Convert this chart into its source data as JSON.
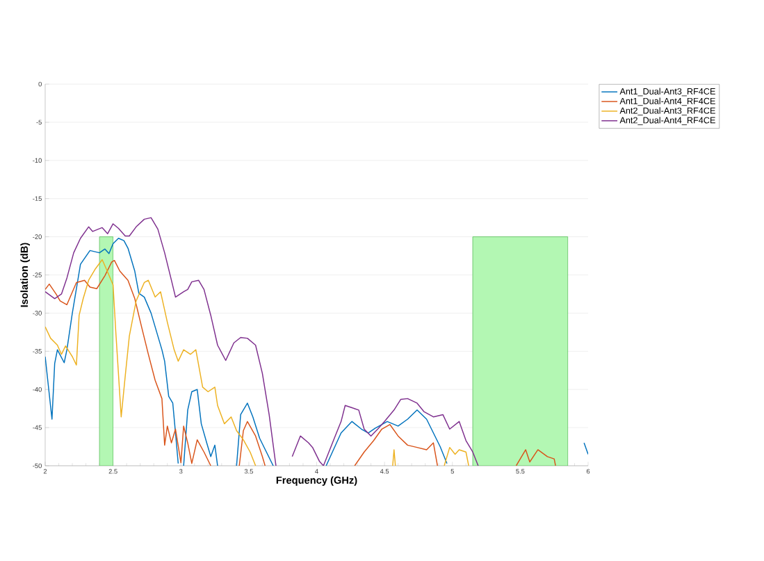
{
  "chart_data": {
    "type": "line",
    "xlabel": "Frequency (GHz)",
    "ylabel": "Isolation (dB)",
    "xlim": [
      2,
      6
    ],
    "ylim": [
      -50,
      0
    ],
    "xticks": [
      2,
      2.5,
      3,
      3.5,
      4,
      4.5,
      5,
      5.5,
      6
    ],
    "yticks": [
      -50,
      -45,
      -40,
      -35,
      -30,
      -25,
      -20,
      -15,
      -10,
      -5,
      0
    ],
    "grid": "y",
    "legend": "top right",
    "series": [
      {
        "type": "area",
        "color": "#b3f7b3",
        "x": [
          2.4,
          2.4,
          2.5,
          2.5
        ],
        "values": [
          -50,
          -20,
          -20,
          -50
        ]
      },
      {
        "type": "area",
        "color": "#b3f7b3",
        "x": [
          5.15,
          5.15,
          5.85,
          5.85
        ],
        "values": [
          -50,
          -20,
          -20,
          -50
        ]
      },
      {
        "name": "Ant1_Dual-Ant3_RF4CE",
        "color": "#0072bd",
        "x": [
          2.0,
          2.05,
          2.07,
          2.09,
          2.14,
          2.16,
          2.2,
          2.26,
          2.33,
          2.4,
          2.44,
          2.47,
          2.5,
          2.54,
          2.58,
          2.61,
          2.66,
          2.69,
          2.73,
          2.78,
          2.83,
          2.86,
          2.88,
          2.91,
          2.94,
          2.96,
          2.98,
          3.0,
          3.02,
          3.05,
          3.08,
          3.12,
          3.15,
          3.19,
          3.22,
          3.25,
          3.27,
          3.35,
          3.41,
          3.44,
          3.49,
          3.53,
          3.58,
          3.63,
          3.68,
          3.9,
          4.07,
          4.18,
          4.26,
          4.33,
          4.38,
          4.43,
          4.52,
          4.6,
          4.67,
          4.74,
          4.81,
          4.86,
          4.91,
          4.96,
          5.5,
          5.97,
          6.0
        ],
        "values": [
          -35.7,
          -43.9,
          -36.6,
          -34.8,
          -36.5,
          -34.8,
          -30,
          -23.6,
          -21.8,
          -22.1,
          -21.6,
          -22.2,
          -20.9,
          -20.2,
          -20.5,
          -21.5,
          -24.5,
          -27.4,
          -27.9,
          -30,
          -33,
          -34.8,
          -36.3,
          -40.9,
          -41.8,
          -45.7,
          -49.7,
          null,
          -50,
          -42.7,
          -40.3,
          -40,
          -44.5,
          -47,
          -48.8,
          -47.3,
          -50,
          null,
          -50,
          -43.3,
          -41.8,
          -43.6,
          -46.4,
          -48.2,
          -50,
          null,
          -50,
          -45.7,
          -44.2,
          -45.2,
          -45.7,
          -45.1,
          -44.2,
          -44.8,
          -43.9,
          -42.7,
          -43.9,
          -45.7,
          -47.5,
          -49.7,
          null,
          -47,
          -48.5
        ]
      },
      {
        "name": "Ant1_Dual-Ant4_RF4CE",
        "color": "#d95319",
        "x": [
          2.0,
          2.03,
          2.08,
          2.11,
          2.16,
          2.23,
          2.29,
          2.33,
          2.38,
          2.44,
          2.49,
          2.51,
          2.55,
          2.61,
          2.66,
          2.71,
          2.76,
          2.81,
          2.86,
          2.88,
          2.9,
          2.93,
          2.96,
          3.0,
          3.02,
          3.05,
          3.08,
          3.12,
          3.17,
          3.22,
          3.3,
          3.43,
          3.46,
          3.49,
          3.55,
          3.6,
          3.62,
          4.0,
          4.28,
          4.35,
          4.42,
          4.48,
          4.54,
          4.6,
          4.67,
          4.74,
          4.81,
          4.86,
          4.89,
          5.2,
          5.47,
          5.54,
          5.57,
          5.63,
          5.7,
          5.75,
          5.76
        ],
        "values": [
          -26.9,
          -26.2,
          -27.5,
          -28.4,
          -28.9,
          -26,
          -25.7,
          -26.6,
          -26.8,
          -25.1,
          -23.3,
          -23.1,
          -24.5,
          -25.7,
          -28.1,
          -31.8,
          -35.4,
          -38.8,
          -41.2,
          -47.3,
          -44.8,
          -47,
          -45.2,
          -49.6,
          -44.8,
          -47,
          -49.7,
          -46.6,
          -48.2,
          -50,
          null,
          -50,
          -45.4,
          -44.2,
          -46.1,
          -48.8,
          -50,
          null,
          -50,
          -48.2,
          -46.7,
          -45.2,
          -44.6,
          -46.1,
          -47.3,
          -47.6,
          -47.9,
          -47,
          -50,
          null,
          -50,
          -47.9,
          -49.5,
          -47.9,
          -48.8,
          -49.1,
          -50
        ]
      },
      {
        "name": "Ant2_Dual-Ant3_RF4CE",
        "color": "#edb120",
        "x": [
          2.0,
          2.04,
          2.09,
          2.12,
          2.15,
          2.2,
          2.23,
          2.25,
          2.28,
          2.32,
          2.37,
          2.42,
          2.45,
          2.5,
          2.52,
          2.56,
          2.59,
          2.62,
          2.67,
          2.73,
          2.76,
          2.81,
          2.85,
          2.9,
          2.95,
          2.98,
          3.02,
          3.07,
          3.11,
          3.16,
          3.2,
          3.25,
          3.27,
          3.32,
          3.37,
          3.41,
          3.46,
          3.51,
          3.55,
          4.0,
          4.56,
          4.57,
          4.58,
          4.75,
          4.94,
          4.98,
          5.02,
          5.05,
          5.1,
          5.12
        ],
        "values": [
          -31.8,
          -33.3,
          -34.2,
          -35.4,
          -34.3,
          -35.7,
          -36.8,
          -30.3,
          -28.1,
          -25.7,
          -24.2,
          -23,
          -24.2,
          -26.3,
          -32.4,
          -43.6,
          -38.2,
          -33,
          -28.4,
          -26,
          -25.7,
          -27.9,
          -27.2,
          -31.2,
          -34.8,
          -36.3,
          -34.8,
          -35.4,
          -34.8,
          -39.7,
          -40.3,
          -39.7,
          -42.1,
          -44.5,
          -43.6,
          -45.4,
          -46.6,
          -48.2,
          -50,
          null,
          -50,
          -47.9,
          -50,
          null,
          -50,
          -47.6,
          -48.5,
          -47.9,
          -48.2,
          -50
        ]
      },
      {
        "name": "Ant2_Dual-Ant4_RF4CE",
        "color": "#7e2f8e",
        "x": [
          2.0,
          2.07,
          2.12,
          2.16,
          2.21,
          2.26,
          2.32,
          2.35,
          2.42,
          2.46,
          2.5,
          2.54,
          2.59,
          2.62,
          2.67,
          2.73,
          2.78,
          2.83,
          2.88,
          2.93,
          2.96,
          3.02,
          3.05,
          3.08,
          3.13,
          3.17,
          3.22,
          3.27,
          3.33,
          3.39,
          3.44,
          3.49,
          3.55,
          3.6,
          3.65,
          3.7,
          3.76,
          3.82,
          3.88,
          3.94,
          3.97,
          4.02,
          4.05,
          4.13,
          4.18,
          4.21,
          4.26,
          4.31,
          4.35,
          4.4,
          4.45,
          4.5,
          4.57,
          4.62,
          4.67,
          4.74,
          4.79,
          4.86,
          4.93,
          4.98,
          5.05,
          5.1,
          5.15,
          5.19
        ],
        "values": [
          -27.2,
          -28.1,
          -27.5,
          -25.4,
          -22.1,
          -20.2,
          -18.7,
          -19.3,
          -18.8,
          -19.6,
          -18.3,
          -18.9,
          -19.9,
          -19.9,
          -18.7,
          -17.7,
          -17.5,
          -19,
          -22.1,
          -25.7,
          -27.9,
          -27.2,
          -26.9,
          -25.9,
          -25.7,
          -26.9,
          -30.3,
          -34.2,
          -36.2,
          -33.9,
          -33.2,
          -33.3,
          -34.2,
          -37.9,
          -43.3,
          -50,
          null,
          -48.8,
          -46.1,
          -47,
          -47.6,
          -49.4,
          -50,
          -46.4,
          -44.2,
          -42.1,
          -42.4,
          -42.7,
          -45.2,
          -46.1,
          -45.2,
          -44.2,
          -42.7,
          -41.3,
          -41.2,
          -41.8,
          -42.9,
          -43.6,
          -43.3,
          -45.2,
          -44.2,
          -46.7,
          -48.2,
          -50
        ]
      }
    ]
  }
}
